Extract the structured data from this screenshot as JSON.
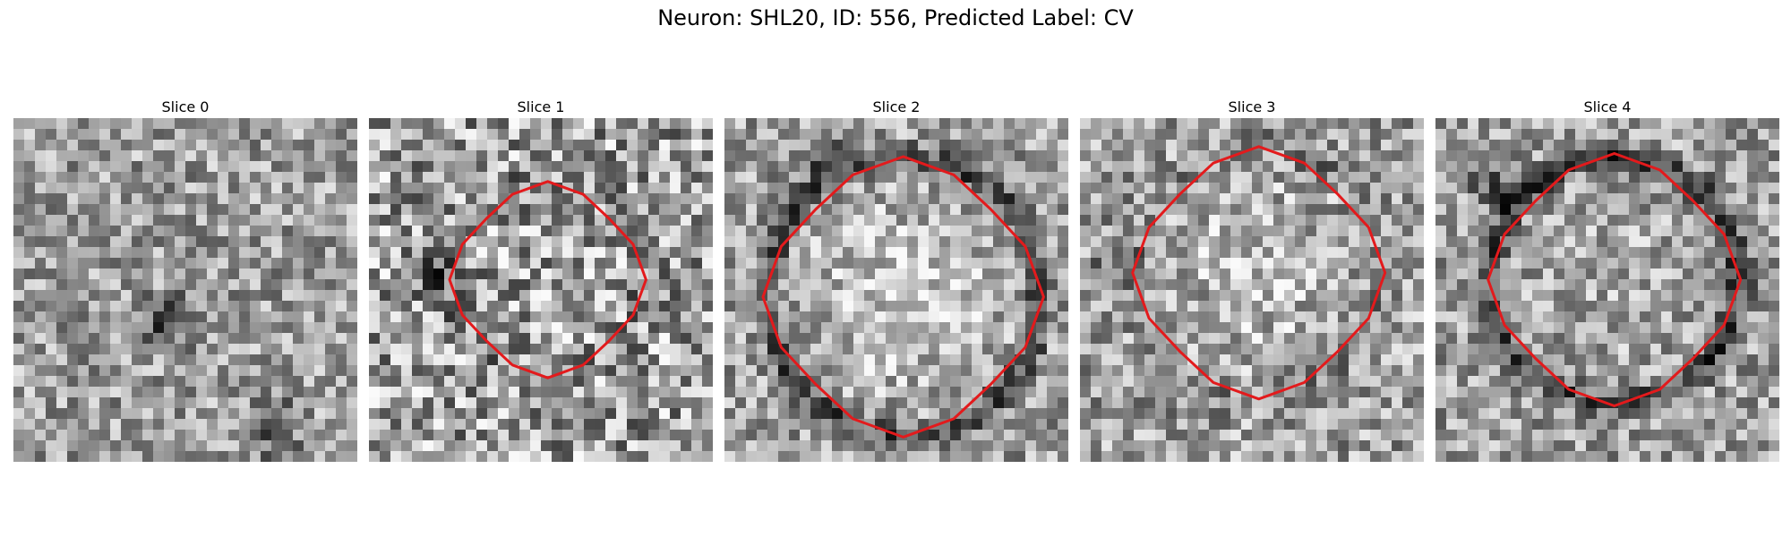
{
  "figure": {
    "title": "Neuron: SHL20, ID: 556, Predicted Label: CV"
  },
  "contour_color": "#e31a1c",
  "slices": [
    {
      "title": "Slice 0",
      "has_contour": false
    },
    {
      "title": "Slice 1",
      "has_contour": true
    },
    {
      "title": "Slice 2",
      "has_contour": true
    },
    {
      "title": "Slice 3",
      "has_contour": true
    },
    {
      "title": "Slice 4",
      "has_contour": true
    }
  ]
}
